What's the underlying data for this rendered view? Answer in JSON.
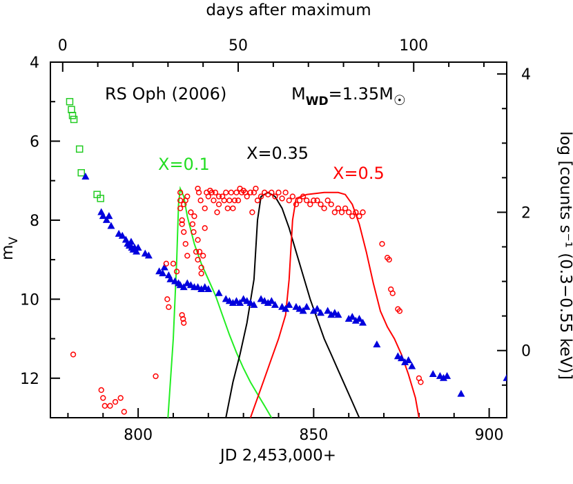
{
  "chart_data": {
    "type": "scatter",
    "title": "RS Oph (2006)",
    "annotation_mwd": {
      "prefix": "M",
      "sub1": "WD",
      "mid": "=1.35M",
      "sub2": "☉"
    },
    "xlabel": "JD 2,453,000+",
    "x2label": "days after maximum",
    "ylabel_main": "m",
    "ylabel_sub": "V",
    "y2label": "log [counts s⁻¹ (0.3−0.55 keV)]",
    "xlim": [
      775,
      905
    ],
    "ylim": [
      4,
      13
    ],
    "y_inverted": true,
    "x_ticks": [
      800,
      850,
      900
    ],
    "y_ticks": [
      4,
      6,
      8,
      10,
      12
    ],
    "x2_ticks": [
      0,
      50,
      100
    ],
    "x2_offset": 778.5,
    "y2_ticks": [
      0,
      2,
      4
    ],
    "y2_map": {
      "v0": 0,
      "m0": 11.3,
      "v1": 2,
      "m1": 7.8
    },
    "series": [
      {
        "marker": "open-square",
        "color": "#22cc22",
        "points": [
          [
            780.5,
            5.0
          ],
          [
            781.0,
            5.2
          ],
          [
            781.3,
            5.35
          ],
          [
            781.7,
            5.45
          ],
          [
            783.3,
            6.2
          ],
          [
            783.8,
            6.8
          ],
          [
            788.3,
            7.35
          ],
          [
            789.3,
            7.45
          ]
        ]
      },
      {
        "marker": "filled-triangle",
        "color": "#0000dd",
        "points": [
          [
            785,
            6.9
          ],
          [
            789.5,
            7.8
          ],
          [
            790,
            7.9
          ],
          [
            791,
            8.0
          ],
          [
            791.7,
            7.9
          ],
          [
            792.3,
            8.15
          ],
          [
            794.5,
            8.35
          ],
          [
            795.5,
            8.4
          ],
          [
            796.5,
            8.5
          ],
          [
            797,
            8.6
          ],
          [
            797.5,
            8.65
          ],
          [
            798,
            8.55
          ],
          [
            798.2,
            8.7
          ],
          [
            798.6,
            8.75
          ],
          [
            799,
            8.7
          ],
          [
            799.5,
            8.8
          ],
          [
            800,
            8.7
          ],
          [
            802,
            8.85
          ],
          [
            803,
            8.9
          ],
          [
            806,
            9.3
          ],
          [
            807,
            9.35
          ],
          [
            807.5,
            9.2
          ],
          [
            808.7,
            9.4
          ],
          [
            809.2,
            9.5
          ],
          [
            810.5,
            9.55
          ],
          [
            811.5,
            9.6
          ],
          [
            812,
            9.65
          ],
          [
            813,
            9.7
          ],
          [
            814,
            9.6
          ],
          [
            815,
            9.65
          ],
          [
            816,
            9.7
          ],
          [
            817,
            9.7
          ],
          [
            818,
            9.75
          ],
          [
            819,
            9.7
          ],
          [
            820,
            9.75
          ],
          [
            823,
            9.85
          ],
          [
            825,
            10.0
          ],
          [
            826,
            10.05
          ],
          [
            827,
            10.1
          ],
          [
            828,
            10.05
          ],
          [
            829,
            10.1
          ],
          [
            830,
            10.0
          ],
          [
            831,
            10.05
          ],
          [
            832,
            10.1
          ],
          [
            833,
            10.15
          ],
          [
            835,
            10.0
          ],
          [
            836,
            10.05
          ],
          [
            837,
            10.1
          ],
          [
            838,
            10.05
          ],
          [
            839,
            10.15
          ],
          [
            841,
            10.2
          ],
          [
            842,
            10.25
          ],
          [
            843,
            10.15
          ],
          [
            845,
            10.2
          ],
          [
            846,
            10.25
          ],
          [
            847,
            10.3
          ],
          [
            848,
            10.2
          ],
          [
            850,
            10.3
          ],
          [
            851,
            10.25
          ],
          [
            852,
            10.35
          ],
          [
            854,
            10.3
          ],
          [
            855,
            10.4
          ],
          [
            856,
            10.35
          ],
          [
            857,
            10.4
          ],
          [
            860,
            10.5
          ],
          [
            861,
            10.45
          ],
          [
            862,
            10.55
          ],
          [
            863,
            10.5
          ],
          [
            864,
            10.6
          ],
          [
            868,
            11.15
          ],
          [
            874,
            11.45
          ],
          [
            875,
            11.5
          ],
          [
            876,
            11.6
          ],
          [
            877,
            11.55
          ],
          [
            878,
            11.7
          ],
          [
            884,
            11.9
          ],
          [
            886,
            11.95
          ],
          [
            887,
            12.0
          ],
          [
            888,
            11.95
          ],
          [
            892,
            12.4
          ],
          [
            905,
            12.0
          ]
        ]
      },
      {
        "marker": "open-circle",
        "color": "#ff0000",
        "points": [
          [
            781.5,
            11.4
          ],
          [
            789.5,
            12.3
          ],
          [
            790,
            12.5
          ],
          [
            790.5,
            12.7
          ],
          [
            792,
            12.7
          ],
          [
            793.5,
            12.6
          ],
          [
            795,
            12.5
          ],
          [
            796,
            12.85
          ],
          [
            808,
            9.1
          ],
          [
            808.3,
            10.0
          ],
          [
            808.7,
            10.2
          ],
          [
            810,
            9.1
          ],
          [
            811,
            9.3
          ],
          [
            812,
            7.3
          ],
          [
            812,
            7.5
          ],
          [
            812,
            7.7
          ],
          [
            812.5,
            8.0
          ],
          [
            812.5,
            8.1
          ],
          [
            813,
            8.3
          ],
          [
            813,
            7.6
          ],
          [
            813.5,
            8.6
          ],
          [
            813.5,
            7.5
          ],
          [
            814,
            7.4
          ],
          [
            814,
            8.9
          ],
          [
            812.5,
            10.4
          ],
          [
            812.8,
            10.5
          ],
          [
            813,
            10.6
          ],
          [
            815,
            7.8
          ],
          [
            815.5,
            8.1
          ],
          [
            815.8,
            8.3
          ],
          [
            816,
            7.9
          ],
          [
            816.5,
            8.8
          ],
          [
            817,
            9.0
          ],
          [
            817,
            8.5
          ],
          [
            817,
            7.2
          ],
          [
            817.3,
            7.3
          ],
          [
            817.5,
            8.8
          ],
          [
            817.8,
            7.5
          ],
          [
            818,
            9.2
          ],
          [
            818,
            9.35
          ],
          [
            818.5,
            8.9
          ],
          [
            819,
            8.2
          ],
          [
            819,
            7.7
          ],
          [
            819.5,
            7.3
          ],
          [
            820,
            7.4
          ],
          [
            820.5,
            7.25
          ],
          [
            821,
            7.3
          ],
          [
            821.5,
            7.5
          ],
          [
            822,
            7.3
          ],
          [
            822.5,
            7.8
          ],
          [
            823,
            7.4
          ],
          [
            823,
            7.6
          ],
          [
            824,
            7.4
          ],
          [
            824.5,
            7.5
          ],
          [
            825,
            7.3
          ],
          [
            825.5,
            7.7
          ],
          [
            826,
            7.5
          ],
          [
            826.5,
            7.3
          ],
          [
            827,
            7.7
          ],
          [
            827.5,
            7.5
          ],
          [
            828,
            7.3
          ],
          [
            828.5,
            7.5
          ],
          [
            829,
            7.2
          ],
          [
            829.5,
            7.3
          ],
          [
            830,
            7.25
          ],
          [
            830.5,
            7.3
          ],
          [
            831,
            7.4
          ],
          [
            832,
            7.3
          ],
          [
            832.5,
            7.8
          ],
          [
            833,
            7.3
          ],
          [
            833.5,
            7.2
          ],
          [
            834,
            7.5
          ],
          [
            835,
            7.4
          ],
          [
            836,
            7.3
          ],
          [
            837,
            7.35
          ],
          [
            838,
            7.3
          ],
          [
            839,
            7.4
          ],
          [
            840,
            7.3
          ],
          [
            841,
            7.45
          ],
          [
            842,
            7.3
          ],
          [
            843,
            7.5
          ],
          [
            844,
            7.4
          ],
          [
            845,
            7.6
          ],
          [
            846,
            7.5
          ],
          [
            847,
            7.4
          ],
          [
            848,
            7.5
          ],
          [
            849,
            7.6
          ],
          [
            850,
            7.5
          ],
          [
            851,
            7.5
          ],
          [
            852,
            7.6
          ],
          [
            853,
            7.7
          ],
          [
            854,
            7.5
          ],
          [
            855,
            7.6
          ],
          [
            856,
            7.8
          ],
          [
            857,
            7.7
          ],
          [
            858,
            7.8
          ],
          [
            859,
            7.7
          ],
          [
            860,
            7.8
          ],
          [
            861,
            7.9
          ],
          [
            862,
            7.8
          ],
          [
            863,
            7.9
          ],
          [
            864,
            7.8
          ],
          [
            869.5,
            8.6
          ],
          [
            871,
            8.95
          ],
          [
            871.5,
            9.0
          ],
          [
            872,
            9.75
          ],
          [
            872.5,
            9.85
          ],
          [
            874,
            10.25
          ],
          [
            874.5,
            10.3
          ],
          [
            880,
            12.0
          ],
          [
            880.5,
            12.1
          ],
          [
            805,
            11.95
          ]
        ]
      },
      {
        "marker": "line",
        "color": "#22ee22",
        "name": "X=0.1",
        "points": [
          [
            808.5,
            13.0
          ],
          [
            810,
            11.0
          ],
          [
            811,
            9.0
          ],
          [
            811.5,
            7.6
          ],
          [
            812,
            7.2
          ],
          [
            813,
            7.4
          ],
          [
            814,
            7.9
          ],
          [
            816,
            8.6
          ],
          [
            818,
            9.1
          ],
          [
            820,
            9.5
          ],
          [
            822,
            9.9
          ],
          [
            824,
            10.4
          ],
          [
            826,
            10.9
          ],
          [
            828,
            11.35
          ],
          [
            830,
            11.75
          ],
          [
            832,
            12.1
          ],
          [
            834,
            12.4
          ],
          [
            836,
            12.7
          ],
          [
            838,
            13.0
          ]
        ]
      },
      {
        "marker": "line",
        "color": "#000000",
        "name": "X=0.35",
        "points": [
          [
            825,
            13.0
          ],
          [
            827,
            12.1
          ],
          [
            829,
            11.4
          ],
          [
            831,
            10.6
          ],
          [
            833,
            9.5
          ],
          [
            834,
            8.0
          ],
          [
            835,
            7.4
          ],
          [
            837,
            7.3
          ],
          [
            839,
            7.4
          ],
          [
            841,
            7.7
          ],
          [
            843,
            8.2
          ],
          [
            845,
            8.8
          ],
          [
            847,
            9.4
          ],
          [
            849,
            10.0
          ],
          [
            851,
            10.5
          ],
          [
            853,
            11.0
          ],
          [
            855,
            11.4
          ],
          [
            857,
            11.8
          ],
          [
            859,
            12.2
          ],
          [
            861,
            12.6
          ],
          [
            863,
            13.0
          ]
        ]
      },
      {
        "marker": "line",
        "color": "#ff0000",
        "name": "X=0.5",
        "points": [
          [
            832,
            13.0
          ],
          [
            834,
            12.5
          ],
          [
            836,
            12.0
          ],
          [
            838,
            11.5
          ],
          [
            840,
            11.0
          ],
          [
            842,
            10.4
          ],
          [
            843,
            9.5
          ],
          [
            844,
            8.0
          ],
          [
            845,
            7.45
          ],
          [
            848,
            7.35
          ],
          [
            853,
            7.3
          ],
          [
            857,
            7.3
          ],
          [
            859,
            7.35
          ],
          [
            861,
            7.6
          ],
          [
            863,
            8.1
          ],
          [
            865,
            8.8
          ],
          [
            867,
            9.6
          ],
          [
            869,
            10.3
          ],
          [
            871,
            10.7
          ],
          [
            873,
            11.0
          ],
          [
            875,
            11.4
          ],
          [
            877,
            11.9
          ],
          [
            879,
            12.5
          ],
          [
            880,
            13.0
          ]
        ]
      }
    ],
    "labels": {
      "x01": "X=0.1",
      "x035": "X=0.35",
      "x05": "X=0.5"
    }
  }
}
